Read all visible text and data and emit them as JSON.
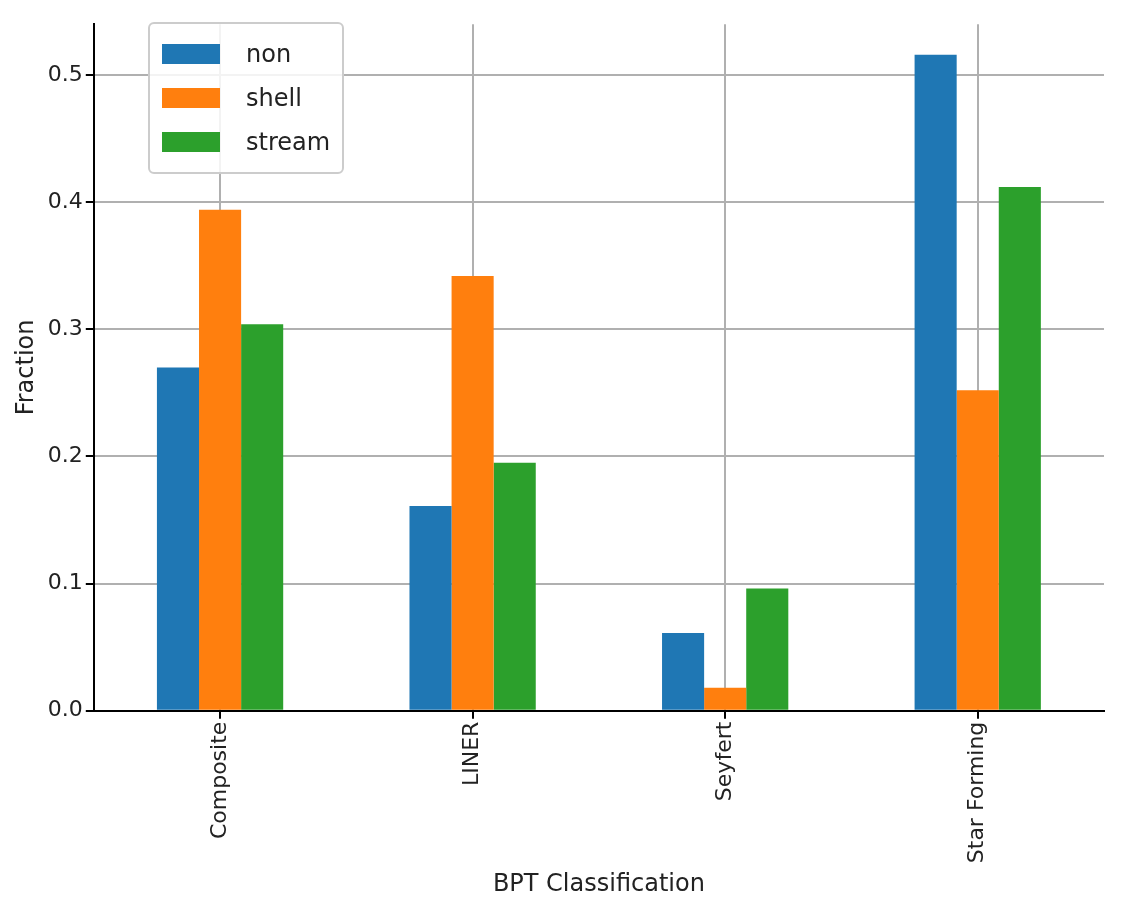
{
  "chart_data": {
    "type": "bar",
    "xlabel": "BPT Classification",
    "ylabel": "Fraction",
    "categories": [
      "Composite",
      "LINER",
      "Seyfert",
      "Star Forming"
    ],
    "series": [
      {
        "name": "non",
        "color": "#1f77b4",
        "values": [
          0.27,
          0.161,
          0.061,
          0.516
        ]
      },
      {
        "name": "shell",
        "color": "#ff7f0e",
        "values": [
          0.394,
          0.342,
          0.018,
          0.252
        ]
      },
      {
        "name": "stream",
        "color": "#2ca02c",
        "values": [
          0.304,
          0.195,
          0.096,
          0.412
        ]
      }
    ],
    "ylim": [
      0,
      0.54
    ],
    "yticks": [
      {
        "value": 0,
        "label": "0.0"
      },
      {
        "value": 0.1,
        "label": "0.1"
      },
      {
        "value": 0.2,
        "label": "0.2"
      },
      {
        "value": 0.3,
        "label": "0.3"
      },
      {
        "value": 0.4,
        "label": "0.4"
      },
      {
        "value": 0.5,
        "label": "0.5"
      }
    ],
    "grid": true,
    "legend": "top left"
  }
}
